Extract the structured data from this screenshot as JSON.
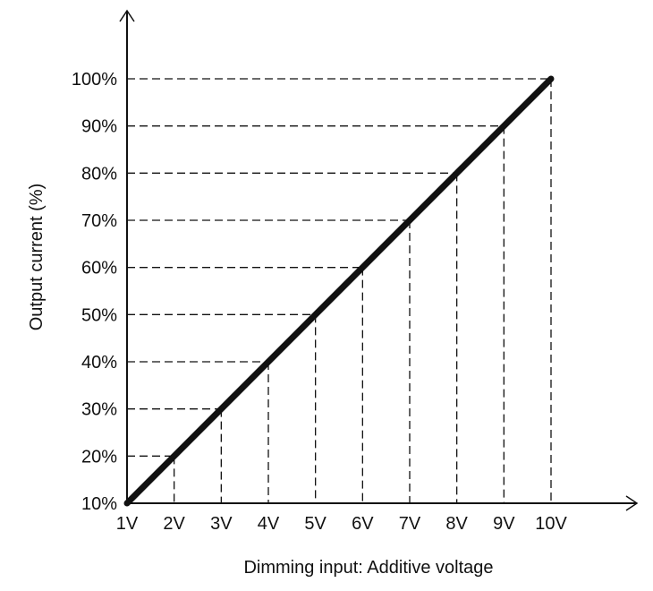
{
  "chart_data": {
    "type": "line",
    "title": "",
    "xlabel": "Dimming input: Additive voltage",
    "ylabel": "Output current (%)",
    "x_tick_labels": [
      "1V",
      "2V",
      "3V",
      "4V",
      "5V",
      "6V",
      "7V",
      "8V",
      "9V",
      "10V"
    ],
    "y_tick_labels": [
      "10%",
      "20%",
      "30%",
      "40%",
      "50%",
      "60%",
      "70%",
      "80%",
      "90%",
      "100%"
    ],
    "xlim": [
      1,
      10
    ],
    "ylim": [
      10,
      100
    ],
    "grid": "dashed reference lines from each point to both axes",
    "series": [
      {
        "x": [
          1,
          2,
          3,
          4,
          5,
          6,
          7,
          8,
          9,
          10
        ],
        "y": [
          10,
          20,
          30,
          40,
          50,
          60,
          70,
          80,
          90,
          100
        ]
      }
    ],
    "colors": {
      "line": "#111111",
      "guides": "#111111"
    }
  }
}
